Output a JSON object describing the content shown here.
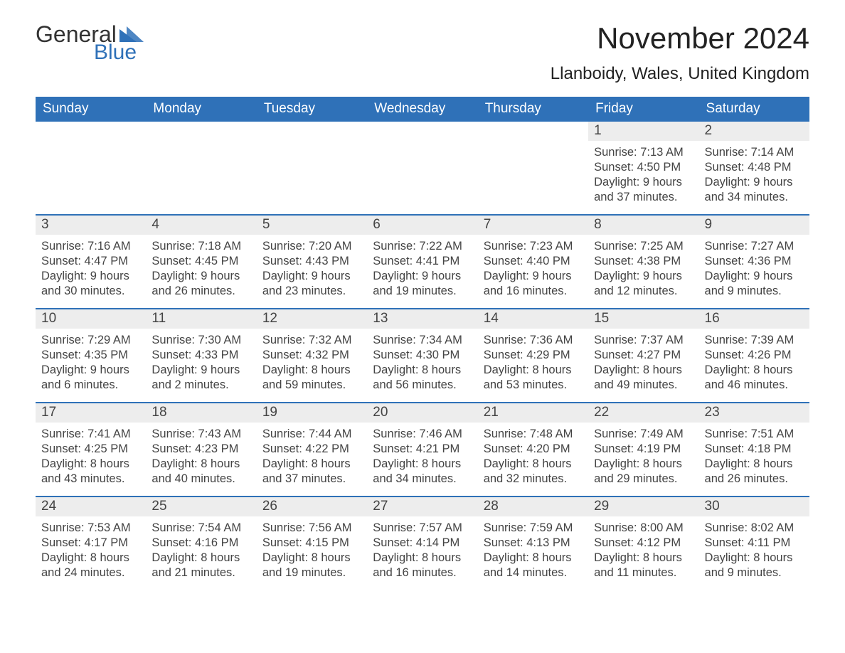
{
  "brand": {
    "general": "General",
    "blue": "Blue"
  },
  "title": "November 2024",
  "location": "Llanboidy, Wales, United Kingdom",
  "colors": {
    "header_bg": "#2f71b8",
    "daynum_bg": "#ededed",
    "text": "#333333",
    "accent": "#2f71b8"
  },
  "headers": [
    "Sunday",
    "Monday",
    "Tuesday",
    "Wednesday",
    "Thursday",
    "Friday",
    "Saturday"
  ],
  "weeks": [
    [
      {
        "empty": true
      },
      {
        "empty": true
      },
      {
        "empty": true
      },
      {
        "empty": true
      },
      {
        "empty": true
      },
      {
        "n": "1",
        "sunrise": "7:13 AM",
        "sunset": "4:50 PM",
        "dl1": "Daylight: 9 hours",
        "dl2": "and 37 minutes."
      },
      {
        "n": "2",
        "sunrise": "7:14 AM",
        "sunset": "4:48 PM",
        "dl1": "Daylight: 9 hours",
        "dl2": "and 34 minutes."
      }
    ],
    [
      {
        "n": "3",
        "sunrise": "7:16 AM",
        "sunset": "4:47 PM",
        "dl1": "Daylight: 9 hours",
        "dl2": "and 30 minutes."
      },
      {
        "n": "4",
        "sunrise": "7:18 AM",
        "sunset": "4:45 PM",
        "dl1": "Daylight: 9 hours",
        "dl2": "and 26 minutes."
      },
      {
        "n": "5",
        "sunrise": "7:20 AM",
        "sunset": "4:43 PM",
        "dl1": "Daylight: 9 hours",
        "dl2": "and 23 minutes."
      },
      {
        "n": "6",
        "sunrise": "7:22 AM",
        "sunset": "4:41 PM",
        "dl1": "Daylight: 9 hours",
        "dl2": "and 19 minutes."
      },
      {
        "n": "7",
        "sunrise": "7:23 AM",
        "sunset": "4:40 PM",
        "dl1": "Daylight: 9 hours",
        "dl2": "and 16 minutes."
      },
      {
        "n": "8",
        "sunrise": "7:25 AM",
        "sunset": "4:38 PM",
        "dl1": "Daylight: 9 hours",
        "dl2": "and 12 minutes."
      },
      {
        "n": "9",
        "sunrise": "7:27 AM",
        "sunset": "4:36 PM",
        "dl1": "Daylight: 9 hours",
        "dl2": "and 9 minutes."
      }
    ],
    [
      {
        "n": "10",
        "sunrise": "7:29 AM",
        "sunset": "4:35 PM",
        "dl1": "Daylight: 9 hours",
        "dl2": "and 6 minutes."
      },
      {
        "n": "11",
        "sunrise": "7:30 AM",
        "sunset": "4:33 PM",
        "dl1": "Daylight: 9 hours",
        "dl2": "and 2 minutes."
      },
      {
        "n": "12",
        "sunrise": "7:32 AM",
        "sunset": "4:32 PM",
        "dl1": "Daylight: 8 hours",
        "dl2": "and 59 minutes."
      },
      {
        "n": "13",
        "sunrise": "7:34 AM",
        "sunset": "4:30 PM",
        "dl1": "Daylight: 8 hours",
        "dl2": "and 56 minutes."
      },
      {
        "n": "14",
        "sunrise": "7:36 AM",
        "sunset": "4:29 PM",
        "dl1": "Daylight: 8 hours",
        "dl2": "and 53 minutes."
      },
      {
        "n": "15",
        "sunrise": "7:37 AM",
        "sunset": "4:27 PM",
        "dl1": "Daylight: 8 hours",
        "dl2": "and 49 minutes."
      },
      {
        "n": "16",
        "sunrise": "7:39 AM",
        "sunset": "4:26 PM",
        "dl1": "Daylight: 8 hours",
        "dl2": "and 46 minutes."
      }
    ],
    [
      {
        "n": "17",
        "sunrise": "7:41 AM",
        "sunset": "4:25 PM",
        "dl1": "Daylight: 8 hours",
        "dl2": "and 43 minutes."
      },
      {
        "n": "18",
        "sunrise": "7:43 AM",
        "sunset": "4:23 PM",
        "dl1": "Daylight: 8 hours",
        "dl2": "and 40 minutes."
      },
      {
        "n": "19",
        "sunrise": "7:44 AM",
        "sunset": "4:22 PM",
        "dl1": "Daylight: 8 hours",
        "dl2": "and 37 minutes."
      },
      {
        "n": "20",
        "sunrise": "7:46 AM",
        "sunset": "4:21 PM",
        "dl1": "Daylight: 8 hours",
        "dl2": "and 34 minutes."
      },
      {
        "n": "21",
        "sunrise": "7:48 AM",
        "sunset": "4:20 PM",
        "dl1": "Daylight: 8 hours",
        "dl2": "and 32 minutes."
      },
      {
        "n": "22",
        "sunrise": "7:49 AM",
        "sunset": "4:19 PM",
        "dl1": "Daylight: 8 hours",
        "dl2": "and 29 minutes."
      },
      {
        "n": "23",
        "sunrise": "7:51 AM",
        "sunset": "4:18 PM",
        "dl1": "Daylight: 8 hours",
        "dl2": "and 26 minutes."
      }
    ],
    [
      {
        "n": "24",
        "sunrise": "7:53 AM",
        "sunset": "4:17 PM",
        "dl1": "Daylight: 8 hours",
        "dl2": "and 24 minutes."
      },
      {
        "n": "25",
        "sunrise": "7:54 AM",
        "sunset": "4:16 PM",
        "dl1": "Daylight: 8 hours",
        "dl2": "and 21 minutes."
      },
      {
        "n": "26",
        "sunrise": "7:56 AM",
        "sunset": "4:15 PM",
        "dl1": "Daylight: 8 hours",
        "dl2": "and 19 minutes."
      },
      {
        "n": "27",
        "sunrise": "7:57 AM",
        "sunset": "4:14 PM",
        "dl1": "Daylight: 8 hours",
        "dl2": "and 16 minutes."
      },
      {
        "n": "28",
        "sunrise": "7:59 AM",
        "sunset": "4:13 PM",
        "dl1": "Daylight: 8 hours",
        "dl2": "and 14 minutes."
      },
      {
        "n": "29",
        "sunrise": "8:00 AM",
        "sunset": "4:12 PM",
        "dl1": "Daylight: 8 hours",
        "dl2": "and 11 minutes."
      },
      {
        "n": "30",
        "sunrise": "8:02 AM",
        "sunset": "4:11 PM",
        "dl1": "Daylight: 8 hours",
        "dl2": "and 9 minutes."
      }
    ]
  ],
  "labels": {
    "sunrise_prefix": "Sunrise: ",
    "sunset_prefix": "Sunset: "
  }
}
